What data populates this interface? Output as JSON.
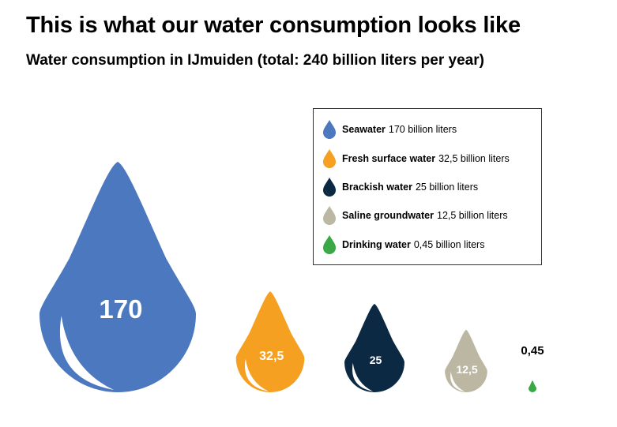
{
  "title": "This is what our water consumption looks like",
  "subtitle": "Water consumption in IJmuiden (total: 240 billion liters per year)",
  "legend": {
    "items": [
      {
        "name": "Seawater",
        "amount": "170 billion liters",
        "color": "#4b78be"
      },
      {
        "name": "Fresh surface water",
        "amount": "32,5 billion liters",
        "color": "#f5a020"
      },
      {
        "name": "Brackish water",
        "amount": "25 billion liters",
        "color": "#0c2944"
      },
      {
        "name": "Saline groundwater",
        "amount": "12,5 billion liters",
        "color": "#bcb7a3"
      },
      {
        "name": "Drinking water",
        "amount": "0,45 billion liters",
        "color": "#3aa845"
      }
    ]
  },
  "chart_data": {
    "type": "proportional-area (droplet) chart",
    "unit": "billion liters per year",
    "categories": [
      "Seawater",
      "Fresh surface water",
      "Brackish water",
      "Saline groundwater",
      "Drinking water"
    ],
    "values": [
      170,
      32.5,
      25,
      12.5,
      0.45
    ],
    "value_labels": [
      "170",
      "32,5",
      "25",
      "12,5",
      "0,45"
    ],
    "colors": [
      "#4b78be",
      "#f5a020",
      "#0c2944",
      "#bcb7a3",
      "#3aa845"
    ],
    "total_label": "240 billion liters per year"
  }
}
